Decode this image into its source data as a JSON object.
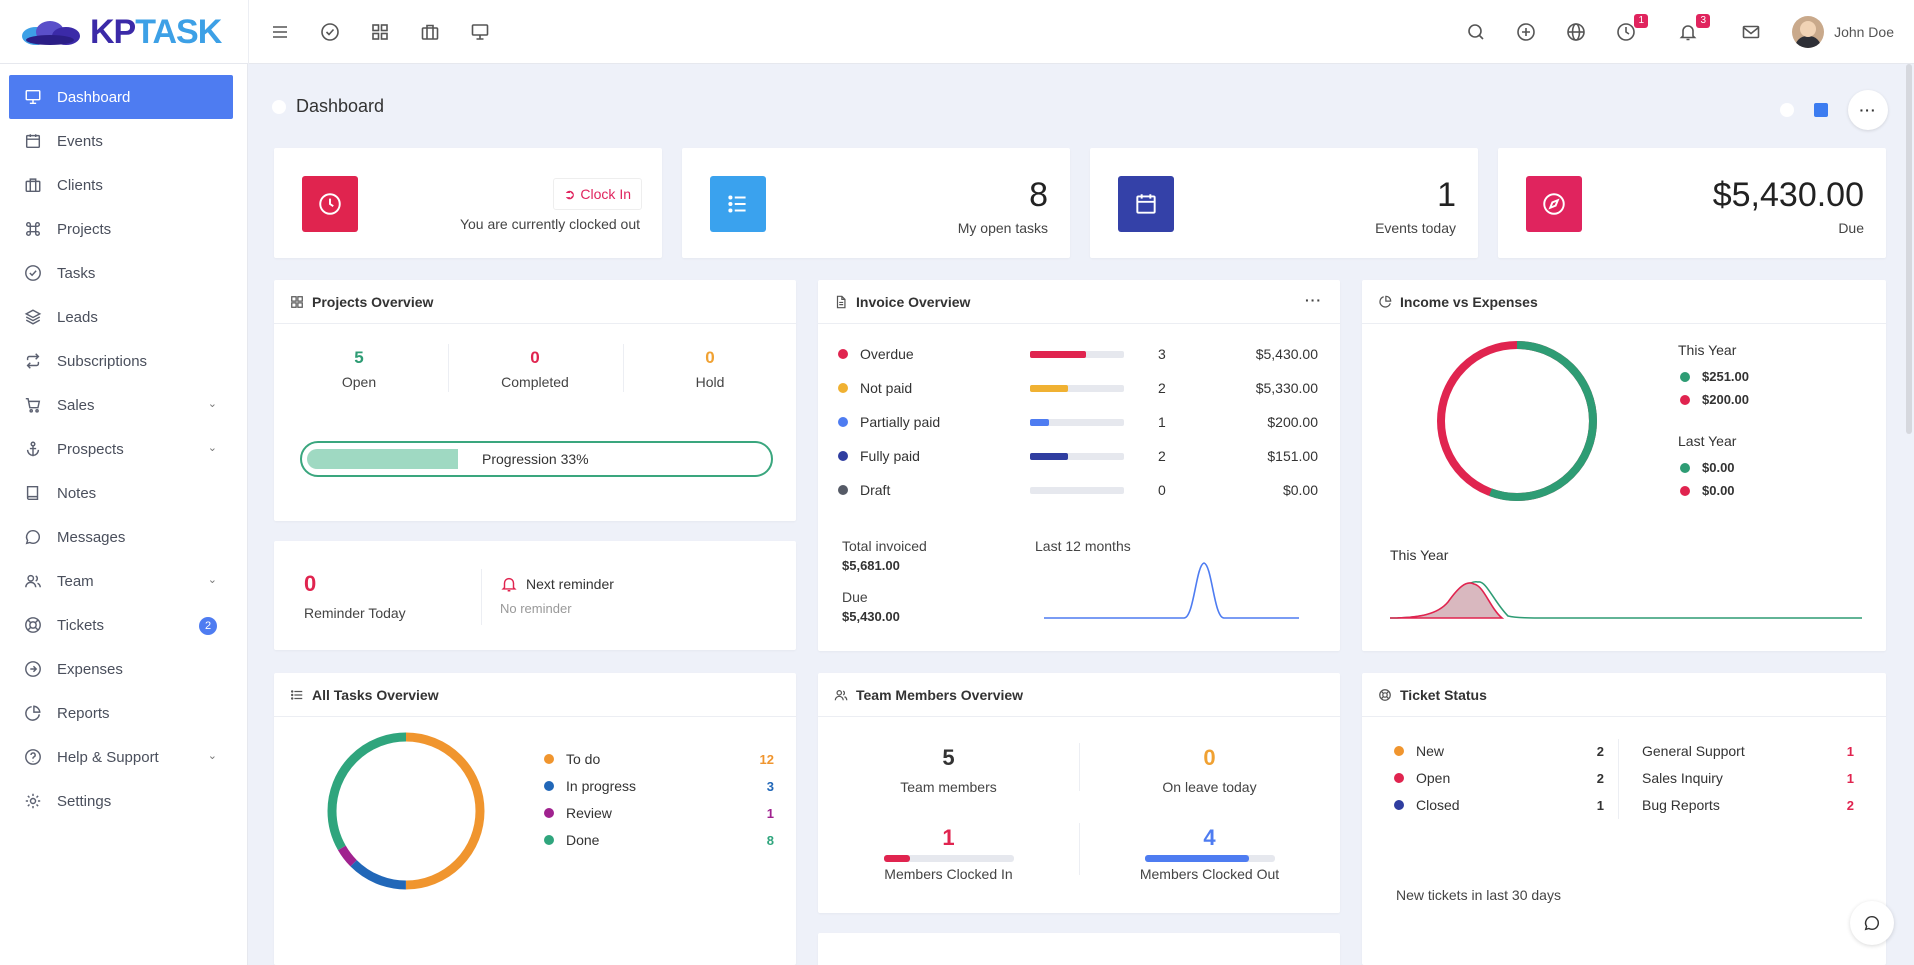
{
  "app": {
    "logo_kp": "KP",
    "logo_task": "TASK"
  },
  "topbar": {
    "badges": {
      "timer": "1",
      "notifications": "3"
    },
    "user_name": "John Doe"
  },
  "sidebar": {
    "items": [
      {
        "label": "Dashboard"
      },
      {
        "label": "Events"
      },
      {
        "label": "Clients"
      },
      {
        "label": "Projects"
      },
      {
        "label": "Tasks"
      },
      {
        "label": "Leads"
      },
      {
        "label": "Subscriptions"
      },
      {
        "label": "Sales"
      },
      {
        "label": "Prospects"
      },
      {
        "label": "Notes"
      },
      {
        "label": "Messages"
      },
      {
        "label": "Team"
      },
      {
        "label": "Tickets",
        "badge": "2"
      },
      {
        "label": "Expenses"
      },
      {
        "label": "Reports"
      },
      {
        "label": "Help & Support"
      },
      {
        "label": "Settings"
      }
    ]
  },
  "page": {
    "title": "Dashboard"
  },
  "stats": {
    "clock": {
      "button": "Clock In",
      "status": "You are currently clocked out"
    },
    "tasks": {
      "value": "8",
      "label": "My open tasks"
    },
    "events": {
      "value": "1",
      "label": "Events today"
    },
    "due": {
      "value": "$5,430.00",
      "label": "Due"
    }
  },
  "projects_overview": {
    "title": "Projects Overview",
    "open": {
      "value": "5",
      "label": "Open"
    },
    "completed": {
      "value": "0",
      "label": "Completed"
    },
    "hold": {
      "value": "0",
      "label": "Hold"
    },
    "progress_label": "Progression 33%",
    "progress": 0.33
  },
  "reminder": {
    "count": "0",
    "label": "Reminder Today",
    "next_title": "Next reminder",
    "next_value": "No reminder"
  },
  "invoice_overview": {
    "title": "Invoice Overview",
    "rows": [
      {
        "name": "Overdue",
        "count": "3",
        "amount": "$5,430.00",
        "color": "#e0244f",
        "fill": 0.6
      },
      {
        "name": "Not paid",
        "count": "2",
        "amount": "$5,330.00",
        "color": "#f0b132",
        "fill": 0.4
      },
      {
        "name": "Partially paid",
        "count": "1",
        "amount": "$200.00",
        "color": "#4e7cf1",
        "fill": 0.2
      },
      {
        "name": "Fully paid",
        "count": "2",
        "amount": "$151.00",
        "color": "#2f3da0",
        "fill": 0.4
      },
      {
        "name": "Draft",
        "count": "0",
        "amount": "$0.00",
        "color": "#555a66",
        "fill": 0
      }
    ],
    "total_label": "Total invoiced",
    "total_value": "$5,681.00",
    "due_label": "Due",
    "due_value": "$5,430.00",
    "chart_label": "Last 12 months"
  },
  "income_expenses": {
    "title": "Income vs Expenses",
    "this_year_label": "This Year",
    "this_year_income": "$251.00",
    "this_year_expense": "$200.00",
    "last_year_label": "Last Year",
    "last_year_income": "$0.00",
    "last_year_expense": "$0.00",
    "chart_label": "This Year",
    "colors": {
      "income": "#2e9c74",
      "expense": "#e0244f"
    }
  },
  "all_tasks": {
    "title": "All Tasks Overview",
    "items": [
      {
        "label": "To do",
        "value": "12",
        "color": "#f0952e"
      },
      {
        "label": "In progress",
        "value": "3",
        "color": "#2167b8"
      },
      {
        "label": "Review",
        "value": "1",
        "color": "#a0228f"
      },
      {
        "label": "Done",
        "value": "8",
        "color": "#2fa57d"
      }
    ]
  },
  "team_overview": {
    "title": "Team Members Overview",
    "members": {
      "value": "5",
      "label": "Team members"
    },
    "leave": {
      "value": "0",
      "label": "On leave today"
    },
    "clocked_in": {
      "value": "1",
      "label": "Members Clocked In",
      "fill": 0.2
    },
    "clocked_out": {
      "value": "4",
      "label": "Members Clocked Out",
      "fill": 0.8
    }
  },
  "ticket_status": {
    "title": "Ticket Status",
    "statuses": [
      {
        "label": "New",
        "value": "2",
        "color": "#f0952e"
      },
      {
        "label": "Open",
        "value": "2",
        "color": "#e0244f"
      },
      {
        "label": "Closed",
        "value": "1",
        "color": "#2f3da0"
      }
    ],
    "categories": [
      {
        "label": "General Support",
        "value": "1"
      },
      {
        "label": "Sales Inquiry",
        "value": "1"
      },
      {
        "label": "Bug Reports",
        "value": "2"
      }
    ],
    "footer": "New tickets in last 30 days"
  }
}
